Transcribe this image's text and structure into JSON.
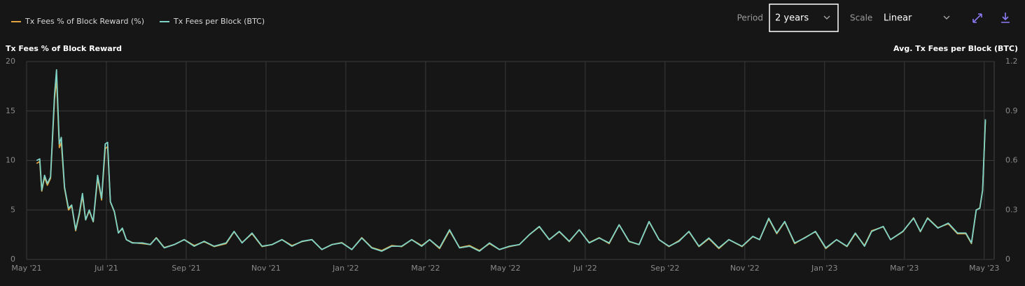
{
  "controls": {
    "period_label": "Period",
    "period_value": "2 years",
    "scale_label": "Scale",
    "scale_value": "Linear"
  },
  "chart_data": {
    "type": "line",
    "y_label": "Tx Fees % of Block Reward",
    "y2_label": "Avg. Tx Fees per Block (BTC)",
    "legend": "top-left",
    "grid": true,
    "xlim": [
      0,
      24.25
    ],
    "xticks": [
      {
        "value": 0,
        "label": "May '21"
      },
      {
        "value": 2,
        "label": "Jul '21"
      },
      {
        "value": 4,
        "label": "Sep '21"
      },
      {
        "value": 6,
        "label": "Nov '21"
      },
      {
        "value": 8,
        "label": "Jan '22"
      },
      {
        "value": 10,
        "label": "Mar '22"
      },
      {
        "value": 12,
        "label": "May '22"
      },
      {
        "value": 14,
        "label": "Jul '22"
      },
      {
        "value": 16,
        "label": "Sep '22"
      },
      {
        "value": 18,
        "label": "Nov '22"
      },
      {
        "value": 20,
        "label": "Jan '23"
      },
      {
        "value": 22,
        "label": "Mar '23"
      },
      {
        "value": 24,
        "label": "May '23"
      }
    ],
    "ylim": [
      0,
      20
    ],
    "yticks": [
      0,
      5,
      10,
      15,
      20
    ],
    "y2lim": [
      0,
      1.2
    ],
    "y2ticks": [
      0,
      0.3,
      0.6,
      0.9,
      1.2
    ],
    "x": [
      0.25,
      0.33,
      0.38,
      0.45,
      0.52,
      0.6,
      0.7,
      0.75,
      0.82,
      0.87,
      0.95,
      1.05,
      1.13,
      1.23,
      1.32,
      1.4,
      1.48,
      1.57,
      1.67,
      1.78,
      1.88,
      1.97,
      2.03,
      2.1,
      2.2,
      2.3,
      2.4,
      2.5,
      2.65,
      2.9,
      3.1,
      3.25,
      3.45,
      3.7,
      3.95,
      4.2,
      4.45,
      4.7,
      5.0,
      5.2,
      5.4,
      5.65,
      5.9,
      6.15,
      6.4,
      6.65,
      6.9,
      7.15,
      7.4,
      7.65,
      7.9,
      8.15,
      8.4,
      8.65,
      8.9,
      9.15,
      9.4,
      9.65,
      9.9,
      10.1,
      10.35,
      10.6,
      10.85,
      11.1,
      11.35,
      11.6,
      11.85,
      12.1,
      12.35,
      12.6,
      12.85,
      13.1,
      13.35,
      13.6,
      13.85,
      14.1,
      14.35,
      14.6,
      14.85,
      15.1,
      15.35,
      15.6,
      15.85,
      16.1,
      16.35,
      16.6,
      16.85,
      17.1,
      17.35,
      17.6,
      17.93,
      18.2,
      18.37,
      18.6,
      18.8,
      19.0,
      19.25,
      19.5,
      19.77,
      20.03,
      20.3,
      20.56,
      20.77,
      21.0,
      21.18,
      21.47,
      21.65,
      21.96,
      22.23,
      22.4,
      22.58,
      22.84,
      23.1,
      23.33,
      23.54,
      23.68,
      23.8,
      23.89,
      23.96,
      24.03
    ],
    "series": [
      {
        "name": "Tx Fees % of Block Reward (%)",
        "color": "#e0a23e",
        "values": [
          9.7,
          9.9,
          6.9,
          8.3,
          7.5,
          8.2,
          16.2,
          18.3,
          11.3,
          11.8,
          7.2,
          5.0,
          5.4,
          2.9,
          4.5,
          6.4,
          4.0,
          4.9,
          3.8,
          8.2,
          6.0,
          11.2,
          11.4,
          5.8,
          4.8,
          2.7,
          3.1,
          2.0,
          1.7,
          1.6,
          1.5,
          2.2,
          1.2,
          1.5,
          2.0,
          1.4,
          1.8,
          1.3,
          1.6,
          2.8,
          1.7,
          2.6,
          1.3,
          1.5,
          2.0,
          1.4,
          1.8,
          2.0,
          1.0,
          1.5,
          1.7,
          1.0,
          2.2,
          1.2,
          0.9,
          1.4,
          1.3,
          2.0,
          1.4,
          2.0,
          1.1,
          2.9,
          1.2,
          1.4,
          0.9,
          1.6,
          1.0,
          1.3,
          1.5,
          2.5,
          3.3,
          2.0,
          2.8,
          1.8,
          3.0,
          1.7,
          2.2,
          1.6,
          3.5,
          1.8,
          1.5,
          3.8,
          2.0,
          1.3,
          1.9,
          2.8,
          1.3,
          2.1,
          1.1,
          2.0,
          1.3,
          2.3,
          2.0,
          4.1,
          2.6,
          3.8,
          1.6,
          2.2,
          2.8,
          1.1,
          2.0,
          1.3,
          2.6,
          1.4,
          2.9,
          3.3,
          2.0,
          2.8,
          4.2,
          2.8,
          4.2,
          3.2,
          3.6,
          2.6,
          2.6,
          1.6,
          5.0,
          5.2,
          7.0,
          14.0
        ]
      },
      {
        "name": "Tx Fees per Block (BTC)",
        "color": "#7fd3c6",
        "axis": "y2",
        "values": [
          0.6,
          0.61,
          0.42,
          0.51,
          0.46,
          0.5,
          1.0,
          1.15,
          0.7,
          0.74,
          0.44,
          0.31,
          0.33,
          0.18,
          0.28,
          0.4,
          0.24,
          0.3,
          0.23,
          0.51,
          0.37,
          0.7,
          0.71,
          0.35,
          0.29,
          0.16,
          0.19,
          0.12,
          0.1,
          0.1,
          0.09,
          0.13,
          0.07,
          0.09,
          0.12,
          0.08,
          0.11,
          0.08,
          0.1,
          0.17,
          0.1,
          0.16,
          0.08,
          0.09,
          0.12,
          0.08,
          0.11,
          0.12,
          0.06,
          0.09,
          0.1,
          0.06,
          0.13,
          0.07,
          0.05,
          0.08,
          0.08,
          0.12,
          0.08,
          0.12,
          0.07,
          0.18,
          0.07,
          0.08,
          0.05,
          0.1,
          0.06,
          0.08,
          0.09,
          0.15,
          0.2,
          0.12,
          0.17,
          0.11,
          0.18,
          0.1,
          0.13,
          0.1,
          0.21,
          0.11,
          0.09,
          0.23,
          0.12,
          0.08,
          0.11,
          0.17,
          0.08,
          0.13,
          0.07,
          0.12,
          0.08,
          0.14,
          0.12,
          0.25,
          0.16,
          0.23,
          0.1,
          0.13,
          0.17,
          0.07,
          0.12,
          0.08,
          0.16,
          0.08,
          0.17,
          0.2,
          0.12,
          0.17,
          0.25,
          0.17,
          0.25,
          0.19,
          0.22,
          0.16,
          0.16,
          0.1,
          0.3,
          0.31,
          0.42,
          0.85
        ]
      }
    ]
  }
}
